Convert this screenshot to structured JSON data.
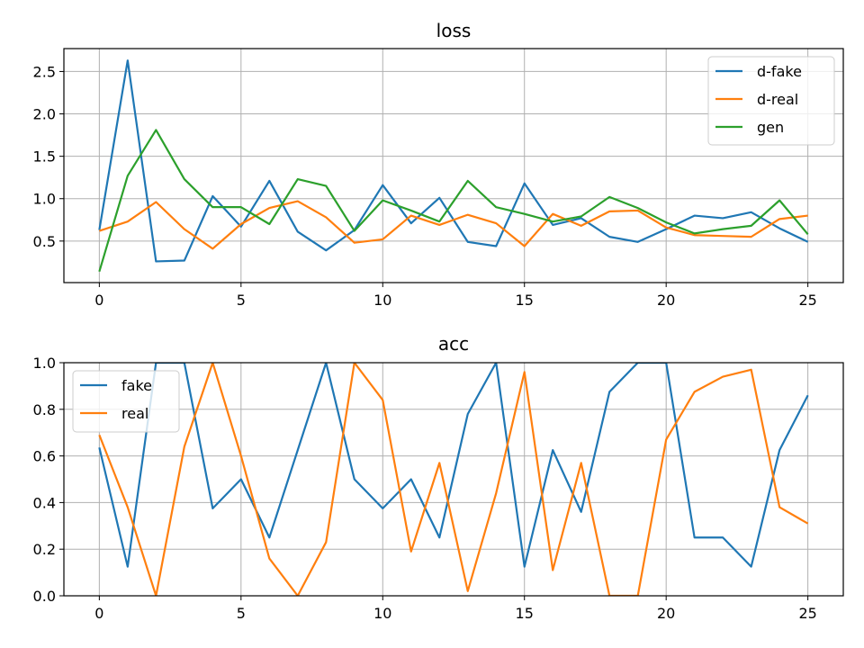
{
  "chart_data": [
    {
      "type": "line",
      "title": "loss",
      "xlabel": "",
      "ylabel": "",
      "xlim": [
        -1.25,
        26.25
      ],
      "ylim": [
        0.01,
        2.77
      ],
      "xticks": [
        0,
        5,
        10,
        15,
        20,
        25
      ],
      "yticks": [
        0.5,
        1.0,
        1.5,
        2.0,
        2.5
      ],
      "ytick_labels": [
        "0.5",
        "1.0",
        "1.5",
        "2.0",
        "2.5"
      ],
      "grid": true,
      "legend_position": "upper right",
      "x": [
        0,
        1,
        2,
        3,
        4,
        5,
        6,
        7,
        8,
        9,
        10,
        11,
        12,
        13,
        14,
        15,
        16,
        17,
        18,
        19,
        20,
        21,
        22,
        23,
        24,
        25
      ],
      "series": [
        {
          "name": "d-fake",
          "color": "#1f77b4",
          "values": [
            0.63,
            2.63,
            0.26,
            0.27,
            1.03,
            0.67,
            1.21,
            0.61,
            0.39,
            0.63,
            1.16,
            0.71,
            1.01,
            0.49,
            0.44,
            1.18,
            0.69,
            0.77,
            0.55,
            0.49,
            0.64,
            0.8,
            0.77,
            0.84,
            0.65,
            0.49
          ]
        },
        {
          "name": "d-real",
          "color": "#ff7f0e",
          "values": [
            0.62,
            0.73,
            0.96,
            0.64,
            0.41,
            0.7,
            0.89,
            0.97,
            0.78,
            0.48,
            0.52,
            0.8,
            0.69,
            0.81,
            0.71,
            0.44,
            0.82,
            0.68,
            0.85,
            0.86,
            0.66,
            0.57,
            0.56,
            0.55,
            0.76,
            0.8
          ]
        },
        {
          "name": "gen",
          "color": "#2ca02c",
          "values": [
            0.14,
            1.27,
            1.81,
            1.23,
            0.9,
            0.9,
            0.7,
            1.23,
            1.15,
            0.62,
            0.98,
            0.86,
            0.73,
            1.21,
            0.9,
            0.82,
            0.73,
            0.79,
            1.02,
            0.89,
            0.72,
            0.59,
            0.64,
            0.68,
            0.98,
            0.58
          ]
        }
      ]
    },
    {
      "type": "line",
      "title": "acc",
      "xlabel": "",
      "ylabel": "",
      "xlim": [
        -1.25,
        26.25
      ],
      "ylim": [
        0.0,
        1.0
      ],
      "xticks": [
        0,
        5,
        10,
        15,
        20,
        25
      ],
      "yticks": [
        0.0,
        0.2,
        0.4,
        0.6,
        0.8,
        1.0
      ],
      "ytick_labels": [
        "0.0",
        "0.2",
        "0.4",
        "0.6",
        "0.8",
        "1.0"
      ],
      "grid": true,
      "legend_position": "upper left",
      "x": [
        0,
        1,
        2,
        3,
        4,
        5,
        6,
        7,
        8,
        9,
        10,
        11,
        12,
        13,
        14,
        15,
        16,
        17,
        18,
        19,
        20,
        21,
        22,
        23,
        24,
        25
      ],
      "series": [
        {
          "name": "fake",
          "color": "#1f77b4",
          "values": [
            0.636,
            0.125,
            1.0,
            1.0,
            0.375,
            0.5,
            0.25,
            0.625,
            1.0,
            0.5,
            0.375,
            0.5,
            0.25,
            0.78,
            1.0,
            0.125,
            0.625,
            0.36,
            0.875,
            1.0,
            1.0,
            0.25,
            0.25,
            0.125,
            0.625,
            0.86
          ]
        },
        {
          "name": "real",
          "color": "#ff7f0e",
          "values": [
            0.69,
            0.38,
            0.0,
            0.64,
            1.0,
            0.6,
            0.16,
            0.0,
            0.23,
            1.0,
            0.84,
            0.19,
            0.57,
            0.02,
            0.44,
            0.96,
            0.11,
            0.57,
            0.0,
            0.0,
            0.67,
            0.875,
            0.94,
            0.97,
            0.38,
            0.31
          ]
        }
      ]
    }
  ]
}
